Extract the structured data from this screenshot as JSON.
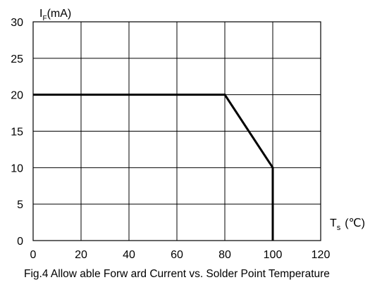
{
  "chart_data": {
    "type": "line",
    "caption": "Fig.4 Allow able Forw ard Current vs. Solder Point Temperature",
    "xlabel": {
      "main": "T",
      "sub": "s",
      "unit": "(℃)"
    },
    "ylabel": {
      "main": "I",
      "sub": "F",
      "unit": "(mA)"
    },
    "xlim": [
      0,
      120
    ],
    "ylim": [
      0,
      30
    ],
    "x_ticks": [
      0,
      20,
      40,
      60,
      80,
      100,
      120
    ],
    "y_ticks": [
      0,
      5,
      10,
      15,
      20,
      25,
      30
    ],
    "x_tick_labels": [
      "0",
      "20",
      "40",
      "60",
      "80",
      "100",
      "120"
    ],
    "y_tick_labels": [
      "0",
      "5",
      "10",
      "15",
      "20",
      "25",
      "30"
    ],
    "grid": true,
    "series": [
      {
        "x": [
          0,
          80,
          100,
          100
        ],
        "y": [
          20,
          20,
          10,
          0
        ]
      }
    ]
  }
}
